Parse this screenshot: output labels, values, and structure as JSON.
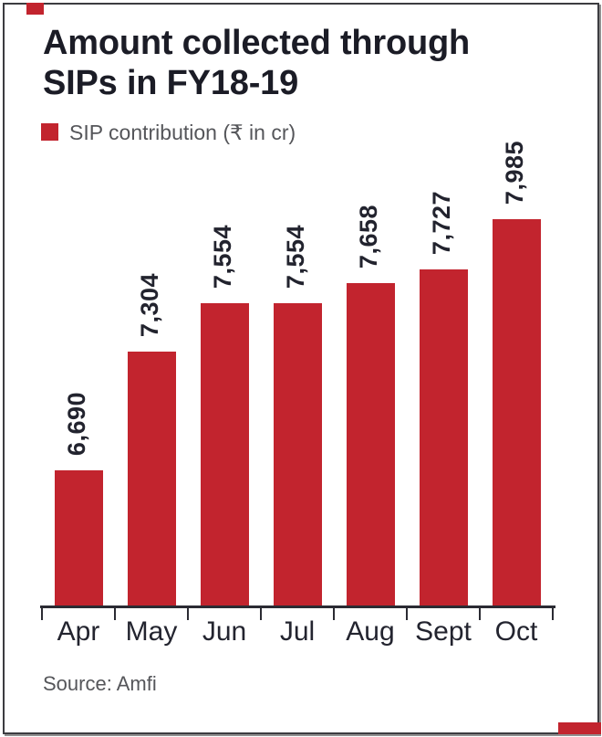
{
  "header": {
    "title_lines": [
      "Amount collected through",
      "SIPs in FY18-19"
    ]
  },
  "legend": {
    "label": "SIP contribution (₹ in cr)",
    "swatch_color": "#c2242e"
  },
  "chart_data": {
    "type": "bar",
    "title": "Amount collected through SIPs in FY18-19",
    "legend": [
      "SIP contribution (₹ in cr)"
    ],
    "legend_position": "top-left",
    "categories": [
      "Apr",
      "May",
      "Jun",
      "Jul",
      "Aug",
      "Sept",
      "Oct"
    ],
    "values": [
      6690,
      7304,
      7554,
      7554,
      7658,
      7727,
      7985
    ],
    "value_labels": [
      "6,690",
      "7,304",
      "7,554",
      "7,554",
      "7,658",
      "7,727",
      "7,985"
    ],
    "value_label_rotation": -90,
    "bar_color": "#c2242e",
    "text_color": "#22232e",
    "xlabel": "",
    "ylabel": "",
    "ylim": [
      6000,
      8200
    ],
    "grid": false,
    "source": "Source: Amfi"
  },
  "footer": {
    "source_label": "Source: Amfi"
  },
  "decorations": {
    "accent_color": "#c2242e"
  }
}
